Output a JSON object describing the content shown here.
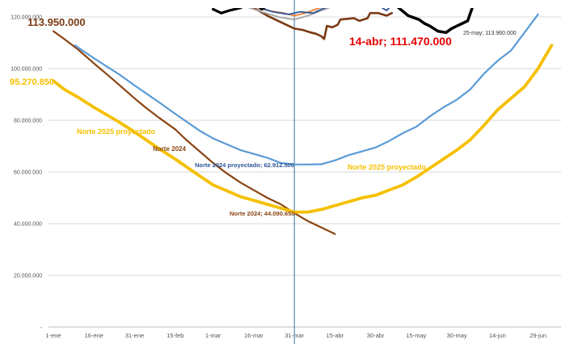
{
  "chart_data": {
    "type": "line",
    "title": "",
    "xlabel": "",
    "ylabel": "",
    "ylim": [
      0,
      120000000
    ],
    "grid": "horizontal",
    "y_ticks": [
      "-",
      "20.000.000",
      "40.000.000",
      "60.000.000",
      "80.000.000",
      "100.000.000",
      "120.000.000"
    ],
    "x_tick_labels": [
      "1-ene",
      "16-ene",
      "31-ene",
      "15-feb",
      "1-mar",
      "16-mar",
      "31-mar",
      "15-abr",
      "30-abr",
      "15-may",
      "30-may",
      "14-jun",
      "29-jun"
    ],
    "x_tick_days": [
      1,
      16,
      31,
      46,
      60,
      75,
      90,
      105,
      120,
      135,
      150,
      165,
      180
    ],
    "vertical_marker_day": 90,
    "colors": {
      "norte2024": "#8B4513",
      "norte2024_proj": "#5B9BD5",
      "norte2025_proj": "#F5C000",
      "year2025_actual": "#7B3A14",
      "black_series": "#000000",
      "annot_red": "#E60000",
      "annot_blue": "#2F5597",
      "marker": "#2E75B6"
    },
    "series": [
      {
        "key": "norte2024",
        "values": [
          [
            1,
            114500000
          ],
          [
            5,
            111500000
          ],
          [
            10,
            107500000
          ],
          [
            16,
            102000000
          ],
          [
            20,
            98500000
          ],
          [
            25,
            94000000
          ],
          [
            31,
            88500000
          ],
          [
            35,
            85000000
          ],
          [
            40,
            81000000
          ],
          [
            46,
            76500000
          ],
          [
            50,
            72500000
          ],
          [
            55,
            68000000
          ],
          [
            60,
            63500000
          ],
          [
            65,
            59500000
          ],
          [
            70,
            56000000
          ],
          [
            75,
            53000000
          ],
          [
            80,
            50000000
          ],
          [
            85,
            47500000
          ],
          [
            90,
            44090650
          ],
          [
            95,
            41000000
          ],
          [
            100,
            38500000
          ],
          [
            105,
            36000000
          ]
        ]
      },
      {
        "key": "norte2024_proj",
        "values": [
          [
            9,
            109000000
          ],
          [
            16,
            104000000
          ],
          [
            25,
            98000000
          ],
          [
            31,
            93500000
          ],
          [
            40,
            87000000
          ],
          [
            46,
            82500000
          ],
          [
            55,
            76000000
          ],
          [
            60,
            73000000
          ],
          [
            70,
            68500000
          ],
          [
            75,
            67000000
          ],
          [
            80,
            65500000
          ],
          [
            85,
            63500000
          ],
          [
            90,
            62912500
          ],
          [
            95,
            62912500
          ],
          [
            100,
            63000000
          ],
          [
            105,
            64500000
          ],
          [
            110,
            66500000
          ],
          [
            115,
            68000000
          ],
          [
            120,
            69500000
          ],
          [
            125,
            72000000
          ],
          [
            130,
            75000000
          ],
          [
            135,
            77500000
          ],
          [
            140,
            81500000
          ],
          [
            145,
            85000000
          ],
          [
            150,
            88000000
          ],
          [
            155,
            92000000
          ],
          [
            160,
            98000000
          ],
          [
            165,
            103000000
          ],
          [
            170,
            107000000
          ],
          [
            175,
            114000000
          ],
          [
            180,
            121000000
          ]
        ]
      },
      {
        "key": "norte2025_proj",
        "values": [
          [
            1,
            95270850
          ],
          [
            5,
            92000000
          ],
          [
            10,
            89000000
          ],
          [
            16,
            85000000
          ],
          [
            25,
            79500000
          ],
          [
            31,
            75500000
          ],
          [
            40,
            69000000
          ],
          [
            46,
            65000000
          ],
          [
            55,
            58500000
          ],
          [
            60,
            55000000
          ],
          [
            70,
            50500000
          ],
          [
            75,
            49000000
          ],
          [
            80,
            47500000
          ],
          [
            85,
            46000000
          ],
          [
            90,
            44500000
          ],
          [
            95,
            44500000
          ],
          [
            100,
            45500000
          ],
          [
            105,
            47000000
          ],
          [
            110,
            48500000
          ],
          [
            115,
            50000000
          ],
          [
            120,
            51000000
          ],
          [
            125,
            53000000
          ],
          [
            130,
            55000000
          ],
          [
            135,
            58000000
          ],
          [
            140,
            61500000
          ],
          [
            145,
            65000000
          ],
          [
            150,
            68500000
          ],
          [
            155,
            72500000
          ],
          [
            160,
            78000000
          ],
          [
            165,
            84000000
          ],
          [
            170,
            88500000
          ],
          [
            175,
            93000000
          ],
          [
            180,
            100000000
          ],
          [
            185,
            109000000
          ]
        ]
      },
      {
        "key": "year2025_actual",
        "values": [
          [
            75,
            123500000
          ],
          [
            80,
            120500000
          ],
          [
            85,
            118000000
          ],
          [
            88,
            116500000
          ],
          [
            90,
            115500000
          ],
          [
            93,
            115000000
          ],
          [
            96,
            114000000
          ],
          [
            98,
            113500000
          ],
          [
            100,
            112500000
          ],
          [
            101,
            111470000
          ],
          [
            102,
            116500000
          ],
          [
            104,
            116000000
          ],
          [
            106,
            117000000
          ],
          [
            107,
            119000000
          ],
          [
            112,
            119500000
          ],
          [
            114,
            118500000
          ],
          [
            117,
            119500000
          ],
          [
            118,
            121500000
          ],
          [
            121,
            121500000
          ],
          [
            124,
            120500000
          ],
          [
            126,
            121500000
          ]
        ]
      },
      {
        "key": "black_series",
        "values": [
          [
            128,
            124000000
          ],
          [
            132,
            120500000
          ],
          [
            136,
            119000000
          ],
          [
            138,
            117500000
          ],
          [
            140,
            116500000
          ],
          [
            143,
            114500000
          ],
          [
            146,
            113960000
          ],
          [
            148,
            115500000
          ],
          [
            150,
            116500000
          ],
          [
            152,
            117500000
          ],
          [
            154,
            118500000
          ],
          [
            155,
            121500000
          ],
          [
            156,
            124500000
          ]
        ]
      }
    ],
    "annotations": {
      "top_left_value": "113.950.000",
      "left_value": "95.270.850",
      "label_2025_proj_left": "Norte 2025 proyectado",
      "label_2024": "Norte 2024",
      "label_2024_proj": "Norte 2024 proyectado; 62.912.500",
      "label_2025_proj_right": "Norte 2025 proyectado",
      "label_2024_point": "Norte 2024; 44.090.650",
      "label_abr": "14-abr;  111.470.000",
      "label_may": "25-may; 113.960.000"
    }
  }
}
